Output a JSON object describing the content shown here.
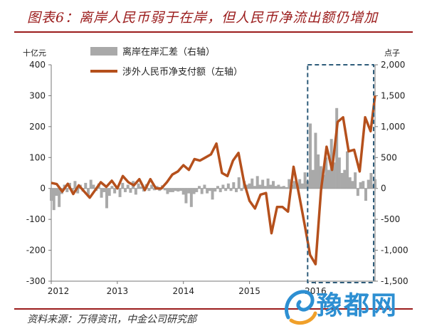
{
  "header": {
    "title": "图表6：离岸人民币弱于在岸，但人民币净流出额仍增加"
  },
  "footer": {
    "source": "资料来源：万得资讯，中金公司研究部"
  },
  "watermark": {
    "text": "豫都网",
    "icon": "swirl-logo-icon"
  },
  "chart_data": {
    "type": "bar+line",
    "left_axis": {
      "unit": "十亿元",
      "min": -300,
      "max": 400,
      "ticks": [
        400,
        300,
        200,
        100,
        0,
        -100,
        -200,
        -300
      ]
    },
    "right_axis": {
      "unit": "点子",
      "min": -1500,
      "max": 2000,
      "ticks": [
        "2,000",
        "1,500",
        "1,000",
        "500",
        "0",
        "-500",
        "-1,000",
        "-1,500"
      ],
      "tick_values": [
        2000,
        1500,
        1000,
        500,
        0,
        -500,
        -1000,
        -1500
      ]
    },
    "x_axis": {
      "min": 2012,
      "max": 2016.9,
      "labels": [
        "2012",
        "2013",
        "2014",
        "2015",
        "2016"
      ],
      "label_values": [
        2012,
        2013,
        2014,
        2015,
        2016
      ]
    },
    "legend": {
      "placement": "top-center",
      "bar_label": "离岸在岸汇差（右轴）",
      "line_label": "涉外人民币净支付额（左轴）"
    },
    "colors": {
      "bar": "#a9a9a9",
      "line": "#b5501c",
      "highlight": "#2e5c7a"
    },
    "highlight_box": {
      "x_from": 2016.67,
      "x_to": 2016.9,
      "note": "dashed box"
    },
    "series": [
      {
        "name": "涉外人民币净支付额（左轴）",
        "axis": "left",
        "points": [
          [
            2012.0,
            18
          ],
          [
            2012.083,
            14
          ],
          [
            2012.167,
            -10
          ],
          [
            2012.25,
            15
          ],
          [
            2012.333,
            -18
          ],
          [
            2012.417,
            10
          ],
          [
            2012.5,
            -10
          ],
          [
            2012.583,
            -30
          ],
          [
            2012.667,
            -5
          ],
          [
            2012.75,
            20
          ],
          [
            2012.833,
            5
          ],
          [
            2012.917,
            25
          ],
          [
            2013.0,
            0
          ],
          [
            2013.083,
            40
          ],
          [
            2013.167,
            20
          ],
          [
            2013.25,
            10
          ],
          [
            2013.333,
            30
          ],
          [
            2013.417,
            -5
          ],
          [
            2013.5,
            30
          ],
          [
            2013.583,
            0
          ],
          [
            2013.667,
            0
          ],
          [
            2013.75,
            20
          ],
          [
            2013.833,
            45
          ],
          [
            2013.917,
            55
          ],
          [
            2014.0,
            75
          ],
          [
            2014.083,
            60
          ],
          [
            2014.167,
            95
          ],
          [
            2014.25,
            90
          ],
          [
            2014.333,
            100
          ],
          [
            2014.417,
            110
          ],
          [
            2014.5,
            145
          ],
          [
            2014.583,
            50
          ],
          [
            2014.667,
            40
          ],
          [
            2014.75,
            90
          ],
          [
            2014.833,
            115
          ],
          [
            2014.917,
            20
          ],
          [
            2015.0,
            -40
          ],
          [
            2015.083,
            -65
          ],
          [
            2015.167,
            -20
          ],
          [
            2015.25,
            -15
          ],
          [
            2015.333,
            -145
          ],
          [
            2015.417,
            -60
          ],
          [
            2015.5,
            -60
          ],
          [
            2015.583,
            -75
          ],
          [
            2015.667,
            70
          ],
          [
            2015.75,
            -20
          ],
          [
            2015.833,
            -115
          ],
          [
            2015.917,
            -215
          ],
          [
            2016.0,
            -245
          ],
          [
            2016.083,
            -5
          ],
          [
            2016.167,
            135
          ],
          [
            2016.25,
            60
          ],
          [
            2016.333,
            215
          ],
          [
            2016.417,
            230
          ],
          [
            2016.5,
            120
          ],
          [
            2016.583,
            125
          ],
          [
            2016.667,
            55
          ],
          [
            2016.75,
            230
          ],
          [
            2016.833,
            185
          ],
          [
            2016.9,
            300
          ]
        ]
      },
      {
        "name": "离岸在岸汇差（右轴）",
        "axis": "right",
        "points": [
          [
            2012.0,
            -200
          ],
          [
            2012.04,
            -350
          ],
          [
            2012.08,
            -120
          ],
          [
            2012.12,
            -300
          ],
          [
            2012.16,
            -90
          ],
          [
            2012.2,
            60
          ],
          [
            2012.24,
            -60
          ],
          [
            2012.28,
            90
          ],
          [
            2012.32,
            -40
          ],
          [
            2012.36,
            120
          ],
          [
            2012.4,
            -80
          ],
          [
            2012.44,
            60
          ],
          [
            2012.48,
            -50
          ],
          [
            2012.52,
            90
          ],
          [
            2012.56,
            -130
          ],
          [
            2012.6,
            140
          ],
          [
            2012.64,
            60
          ],
          [
            2012.68,
            -40
          ],
          [
            2012.72,
            80
          ],
          [
            2012.76,
            -150
          ],
          [
            2012.8,
            -60
          ],
          [
            2012.84,
            -320
          ],
          [
            2012.88,
            -120
          ],
          [
            2012.92,
            40
          ],
          [
            2012.96,
            -80
          ],
          [
            2013.0,
            30
          ],
          [
            2013.04,
            -140
          ],
          [
            2013.08,
            90
          ],
          [
            2013.12,
            -60
          ],
          [
            2013.16,
            60
          ],
          [
            2013.2,
            -70
          ],
          [
            2013.24,
            120
          ],
          [
            2013.28,
            -100
          ],
          [
            2013.32,
            80
          ],
          [
            2013.36,
            30
          ],
          [
            2013.4,
            -50
          ],
          [
            2013.44,
            70
          ],
          [
            2013.48,
            -40
          ],
          [
            2013.52,
            60
          ],
          [
            2013.56,
            -30
          ],
          [
            2013.6,
            40
          ],
          [
            2013.64,
            -40
          ],
          [
            2013.68,
            50
          ],
          [
            2013.72,
            -30
          ],
          [
            2013.76,
            -90
          ],
          [
            2013.8,
            -60
          ],
          [
            2013.84,
            -60
          ],
          [
            2013.88,
            -40
          ],
          [
            2013.92,
            -50
          ],
          [
            2013.96,
            -40
          ],
          [
            2014.0,
            -100
          ],
          [
            2014.04,
            -240
          ],
          [
            2014.08,
            -80
          ],
          [
            2014.12,
            -300
          ],
          [
            2014.16,
            -90
          ],
          [
            2014.2,
            -60
          ],
          [
            2014.24,
            40
          ],
          [
            2014.28,
            -90
          ],
          [
            2014.32,
            60
          ],
          [
            2014.36,
            -80
          ],
          [
            2014.4,
            -40
          ],
          [
            2014.44,
            -180
          ],
          [
            2014.48,
            -50
          ],
          [
            2014.52,
            40
          ],
          [
            2014.56,
            -60
          ],
          [
            2014.6,
            60
          ],
          [
            2014.64,
            -40
          ],
          [
            2014.68,
            80
          ],
          [
            2014.72,
            -40
          ],
          [
            2014.76,
            100
          ],
          [
            2014.8,
            -60
          ],
          [
            2014.84,
            180
          ],
          [
            2014.88,
            -40
          ],
          [
            2014.92,
            120
          ],
          [
            2014.96,
            60
          ],
          [
            2015.0,
            80
          ],
          [
            2015.04,
            160
          ],
          [
            2015.08,
            40
          ],
          [
            2015.12,
            200
          ],
          [
            2015.16,
            60
          ],
          [
            2015.2,
            140
          ],
          [
            2015.24,
            40
          ],
          [
            2015.28,
            160
          ],
          [
            2015.32,
            60
          ],
          [
            2015.36,
            120
          ],
          [
            2015.4,
            40
          ],
          [
            2015.44,
            60
          ],
          [
            2015.48,
            30
          ],
          [
            2015.52,
            40
          ],
          [
            2015.56,
            20
          ],
          [
            2015.6,
            150
          ],
          [
            2015.64,
            60
          ],
          [
            2015.68,
            120
          ],
          [
            2015.72,
            60
          ],
          [
            2015.76,
            150
          ],
          [
            2015.8,
            80
          ],
          [
            2015.84,
            260
          ],
          [
            2015.88,
            120
          ],
          [
            2015.92,
            1050
          ],
          [
            2015.96,
            300
          ],
          [
            2016.0,
            900
          ],
          [
            2016.04,
            550
          ],
          [
            2016.08,
            360
          ],
          [
            2016.12,
            220
          ],
          [
            2016.16,
            500
          ],
          [
            2016.2,
            300
          ],
          [
            2016.24,
            800
          ],
          [
            2016.28,
            420
          ],
          [
            2016.32,
            1300
          ],
          [
            2016.36,
            500
          ],
          [
            2016.4,
            250
          ],
          [
            2016.44,
            300
          ],
          [
            2016.48,
            600
          ],
          [
            2016.52,
            180
          ],
          [
            2016.56,
            120
          ],
          [
            2016.6,
            260
          ],
          [
            2016.64,
            -120
          ],
          [
            2016.68,
            100
          ],
          [
            2016.72,
            120
          ],
          [
            2016.76,
            -200
          ],
          [
            2016.8,
            140
          ],
          [
            2016.84,
            250
          ],
          [
            2016.88,
            60
          ],
          [
            2016.9,
            150
          ]
        ]
      }
    ]
  }
}
